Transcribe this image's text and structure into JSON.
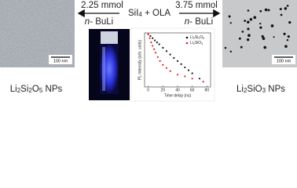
{
  "left_image": {
    "scale_bar": "100 nm"
  },
  "right_image": {
    "scale_bar": "100 nm"
  },
  "precursor": "SiI4 + OLA",
  "left_arrow": {
    "amount": "2.25 mmol",
    "reagent": "n- BuLi"
  },
  "right_arrow": {
    "amount": "3.75 mmol",
    "reagent": "n- BuLi"
  },
  "left_product": "Li2Si2O5 NPs",
  "right_product": "Li2SiO3 NPs",
  "plot": {
    "type": "scatter",
    "xlabel": "Time delay (ns)",
    "ylabel": "PL Intensity (arb. units)",
    "xlim": [
      -5,
      85
    ],
    "xticks": [
      0,
      20,
      40,
      60,
      80
    ],
    "ylim": [
      0.001,
      1.2
    ],
    "log_y": true,
    "legend": "top-right",
    "series": [
      {
        "name": "Li2Si2O5",
        "color": "#111111",
        "x": [
          0,
          3,
          6,
          9,
          12,
          15,
          20,
          25,
          30,
          35,
          40,
          45,
          50,
          55,
          60,
          70
        ],
        "values": [
          1,
          0.8,
          0.6,
          0.45,
          0.35,
          0.27,
          0.17,
          0.11,
          0.07,
          0.045,
          0.03,
          0.02,
          0.013,
          0.009,
          0.006,
          0.003
        ]
      },
      {
        "name": "Li2SiO3",
        "color": "#e02020",
        "x": [
          0,
          2,
          4,
          6,
          8,
          10,
          13,
          16,
          20,
          25,
          30,
          40,
          50,
          60,
          75
        ],
        "values": [
          1,
          0.6,
          0.35,
          0.22,
          0.14,
          0.09,
          0.05,
          0.03,
          0.018,
          0.012,
          0.008,
          0.005,
          0.004,
          0.003,
          0.002
        ]
      }
    ]
  }
}
